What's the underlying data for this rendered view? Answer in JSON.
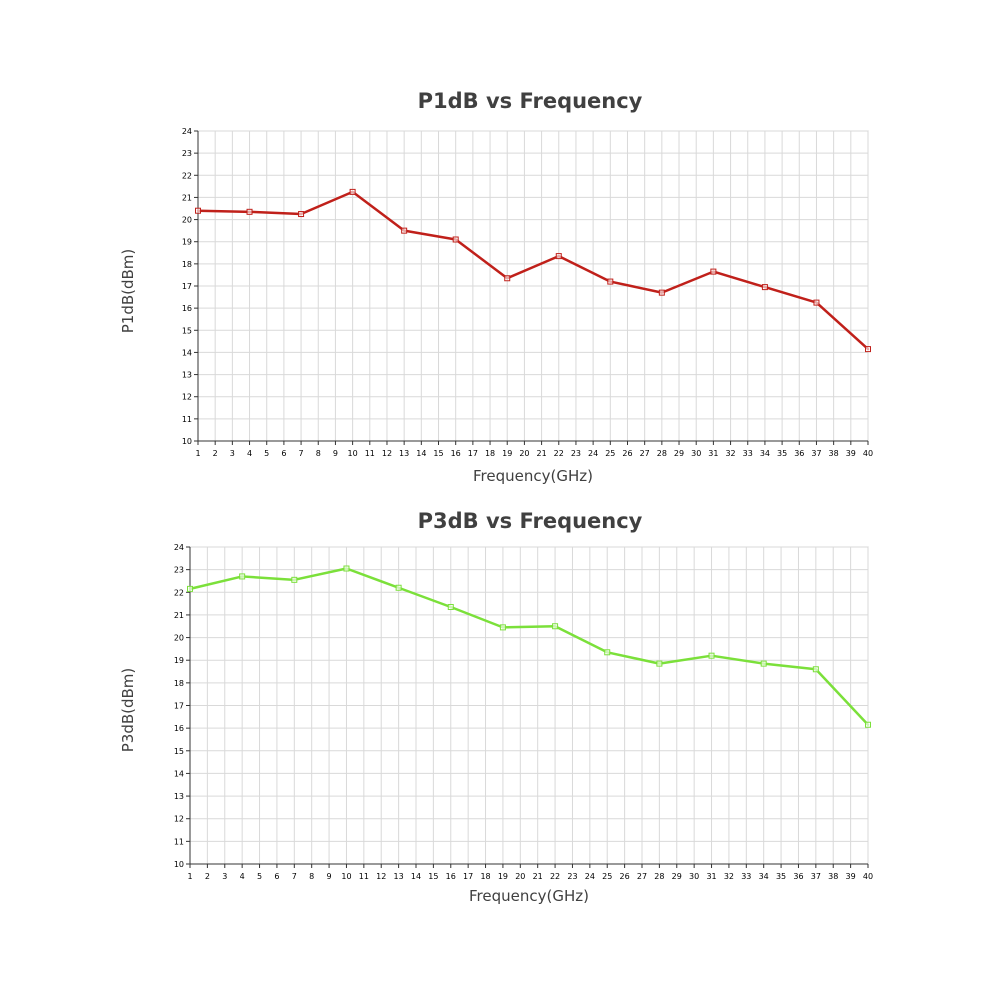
{
  "chart_data": [
    {
      "type": "line",
      "title": "P1dB vs Frequency",
      "xlabel": "Frequency(GHz)",
      "ylabel": "P1dB(dBm)",
      "xlim": [
        1,
        40
      ],
      "ylim": [
        10,
        24
      ],
      "xticks": [
        "1",
        "2",
        "3",
        "4",
        "5",
        "6",
        "7",
        "8",
        "9",
        "10",
        "11",
        "12",
        "13",
        "14",
        "15",
        "16",
        "17",
        "18",
        "19",
        "20",
        "21",
        "22",
        "23",
        "24",
        "25",
        "26",
        "27",
        "28",
        "29",
        "30",
        "31",
        "32",
        "33",
        "34",
        "35",
        "36",
        "37",
        "38",
        "39",
        "40"
      ],
      "yticks": [
        "10",
        "11",
        "12",
        "13",
        "14",
        "15",
        "16",
        "17",
        "18",
        "19",
        "20",
        "21",
        "22",
        "23",
        "24"
      ],
      "grid": true,
      "color": "#c0201a",
      "series": [
        {
          "x": [
            1,
            4,
            7,
            10,
            13,
            16,
            19,
            22,
            25,
            28,
            31,
            34,
            37,
            40
          ],
          "values": [
            20.4,
            20.35,
            20.25,
            21.25,
            19.5,
            19.1,
            17.35,
            18.35,
            17.2,
            16.7,
            17.65,
            16.95,
            16.25,
            14.15
          ]
        }
      ]
    },
    {
      "type": "line",
      "title": "P3dB vs Frequency",
      "xlabel": "Frequency(GHz)",
      "ylabel": "P3dB(dBm)",
      "xlim": [
        1,
        40
      ],
      "ylim": [
        10,
        24
      ],
      "xticks": [
        "1",
        "2",
        "3",
        "4",
        "5",
        "6",
        "7",
        "8",
        "9",
        "10",
        "11",
        "12",
        "13",
        "14",
        "15",
        "16",
        "17",
        "18",
        "19",
        "20",
        "21",
        "22",
        "23",
        "24",
        "25",
        "26",
        "27",
        "28",
        "29",
        "30",
        "31",
        "32",
        "33",
        "34",
        "35",
        "36",
        "37",
        "38",
        "39",
        "40"
      ],
      "yticks": [
        "10",
        "11",
        "12",
        "13",
        "14",
        "15",
        "16",
        "17",
        "18",
        "19",
        "20",
        "21",
        "22",
        "23",
        "24"
      ],
      "grid": true,
      "color": "#7be03a",
      "series": [
        {
          "x": [
            1,
            4,
            7,
            10,
            13,
            16,
            19,
            22,
            25,
            28,
            31,
            34,
            37,
            40
          ],
          "values": [
            22.15,
            22.7,
            22.55,
            23.05,
            22.2,
            21.35,
            20.45,
            20.5,
            19.35,
            18.85,
            19.2,
            18.85,
            18.6,
            16.15
          ]
        }
      ]
    }
  ]
}
